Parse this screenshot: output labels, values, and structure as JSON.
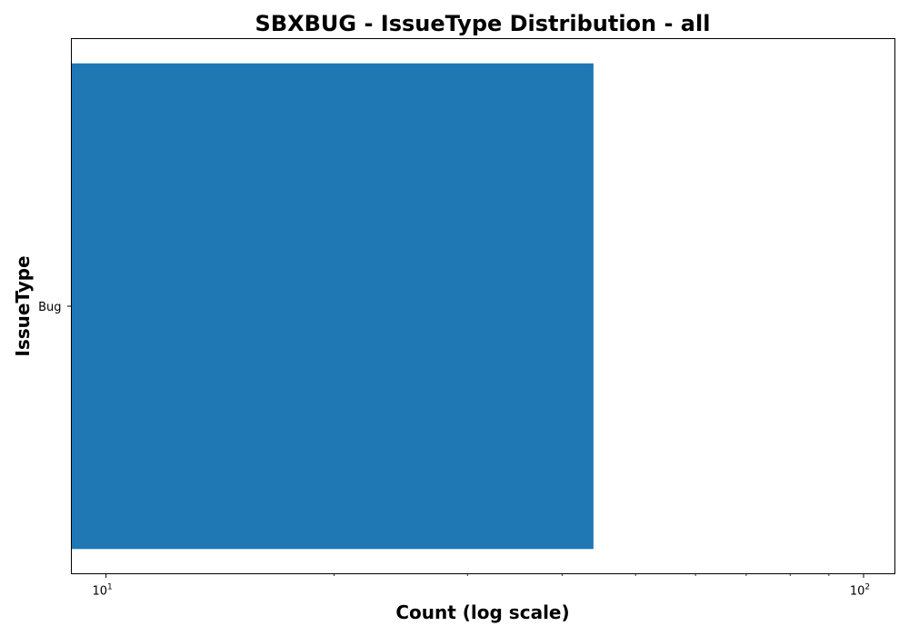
{
  "chart_data": {
    "type": "bar",
    "orientation": "horizontal",
    "title": "SBXBUG - IssueType Distribution - all",
    "xlabel": "Count (log scale)",
    "ylabel": "IssueType",
    "x_scale": "log",
    "xlim": [
      9,
      110
    ],
    "categories": [
      "Bug"
    ],
    "values": [
      44
    ],
    "bar_color": "#1f77b4",
    "x_major_ticks": [
      {
        "value": 10,
        "base": "10",
        "exp": "1"
      },
      {
        "value": 100,
        "base": "10",
        "exp": "2"
      }
    ],
    "x_minor_ticks": [
      20,
      30,
      40,
      50,
      60,
      70,
      80,
      90
    ],
    "grid": false,
    "legend": "none"
  }
}
